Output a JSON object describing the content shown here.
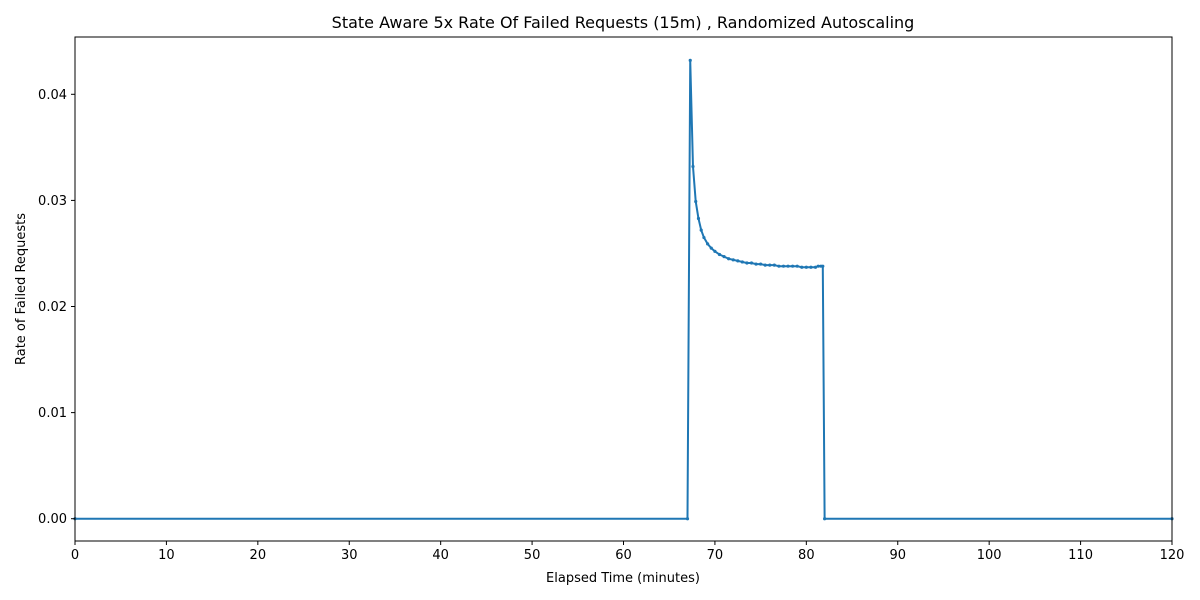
{
  "chart_data": {
    "type": "line",
    "title": "State Aware 5x Rate Of Failed Requests (15m) , Randomized Autoscaling",
    "xlabel": "Elapsed Time (minutes)",
    "ylabel": "Rate of Failed Requests",
    "xlim": [
      0,
      120
    ],
    "ylim": [
      -0.0021,
      0.0454
    ],
    "xticks": [
      0,
      10,
      20,
      30,
      40,
      50,
      60,
      70,
      80,
      90,
      100,
      110,
      120
    ],
    "yticks": [
      0.0,
      0.01,
      0.02,
      0.03,
      0.04
    ],
    "ytick_labels": [
      "0.00",
      "0.01",
      "0.02",
      "0.03",
      "0.04"
    ],
    "grid": false,
    "legend": "none",
    "series": [
      {
        "color": "#1f77b4",
        "marker": "dot",
        "x": [
          0,
          67.0,
          67.3,
          67.6,
          67.9,
          68.2,
          68.5,
          68.8,
          69.2,
          69.6,
          70.0,
          70.5,
          71.0,
          71.5,
          72.0,
          72.5,
          73.0,
          73.5,
          74.0,
          74.5,
          75.0,
          75.5,
          76.0,
          76.5,
          77.0,
          77.5,
          78.0,
          78.5,
          79.0,
          79.5,
          80.0,
          80.5,
          81.0,
          81.3,
          81.6,
          81.8,
          82.0,
          120
        ],
        "y": [
          0.0,
          0.0,
          0.0432,
          0.0332,
          0.0299,
          0.0283,
          0.0272,
          0.0265,
          0.0259,
          0.0255,
          0.0252,
          0.0249,
          0.0247,
          0.0245,
          0.0244,
          0.0243,
          0.0242,
          0.0241,
          0.0241,
          0.024,
          0.024,
          0.0239,
          0.0239,
          0.0239,
          0.0238,
          0.0238,
          0.0238,
          0.0238,
          0.0238,
          0.0237,
          0.0237,
          0.0237,
          0.0237,
          0.0238,
          0.0238,
          0.0238,
          0.0,
          0.0
        ]
      }
    ]
  }
}
